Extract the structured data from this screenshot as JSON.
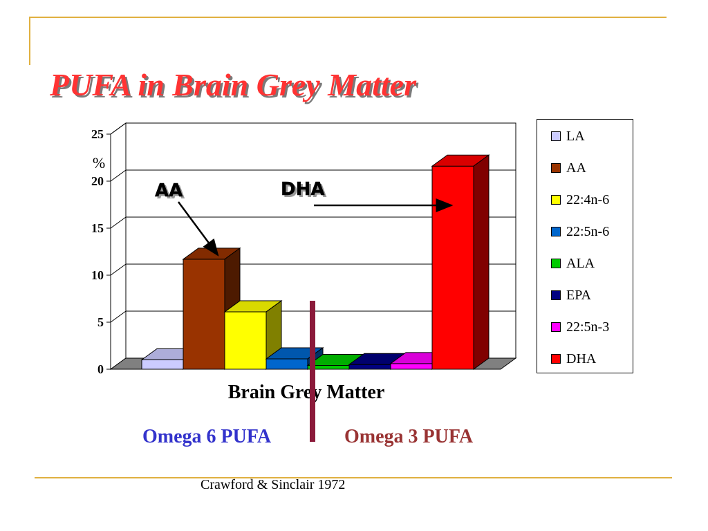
{
  "slide": {
    "title": "PUFA in Brain Grey Matter",
    "omega6_label": "Omega 6 PUFA",
    "omega3_label": "Omega 3 PUFA",
    "citation": "Crawford & Sinclair 1972",
    "accent_color": "#e0b040",
    "title_color": "#ff3333"
  },
  "chart_data": {
    "type": "bar",
    "categories": [
      "Brain Grey Matter"
    ],
    "xlabel": "Brain Grey Matter",
    "ylabel": "%",
    "ylim": [
      0,
      25
    ],
    "yticks": [
      0,
      5,
      10,
      15,
      20,
      25
    ],
    "grid": true,
    "legend_position": "right",
    "series": [
      {
        "name": "LA",
        "values": [
          1
        ],
        "color": "#ccccff"
      },
      {
        "name": "AA",
        "values": [
          11.7
        ],
        "color": "#993300"
      },
      {
        "name": "22:4n-6",
        "values": [
          6.1
        ],
        "color": "#ffff00"
      },
      {
        "name": "22:5n-6",
        "values": [
          1.1
        ],
        "color": "#0066cc"
      },
      {
        "name": "ALA",
        "values": [
          0.4
        ],
        "color": "#00cc00"
      },
      {
        "name": "EPA",
        "values": [
          0.5
        ],
        "color": "#000080"
      },
      {
        "name": "22:5n-3",
        "values": [
          0.6
        ],
        "color": "#ff00ff"
      },
      {
        "name": "DHA",
        "values": [
          21.6
        ],
        "color": "#ff0000"
      }
    ],
    "annotations": [
      {
        "text": "AA",
        "target_series": "AA"
      },
      {
        "text": "DHA",
        "target_series": "DHA"
      }
    ]
  }
}
